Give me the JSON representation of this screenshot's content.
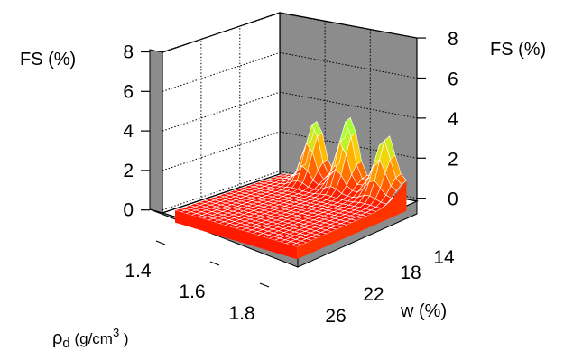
{
  "chart_data": {
    "type": "surface3d",
    "title": "",
    "zlabel_left": "FS (%)",
    "zlabel_right": "FS (%)",
    "xlabel_main": "ρ",
    "xlabel_sub": "d",
    "xlabel_unit": " (g/cm",
    "xlabel_sup": "3",
    "xlabel_close": " )",
    "ylabel": "w (%)",
    "z_ticks": [
      "0",
      "2",
      "4",
      "6",
      "8"
    ],
    "x_ticks": [
      "1.4",
      "1.6",
      "1.8"
    ],
    "y_ticks": [
      "14",
      "18",
      "22",
      "26"
    ],
    "xlim": [
      1.3,
      1.9
    ],
    "ylim": [
      12,
      28
    ],
    "zlim": [
      -1,
      8
    ],
    "grid": true,
    "colormap": [
      "#ff0000",
      "#ff6a00",
      "#ffcc00",
      "#aaff33"
    ],
    "surface_profile": {
      "description_of_peaks_along_w_at_low_density": [
        {
          "w": 14,
          "fs": 2.6
        },
        {
          "w": 18,
          "fs": 3.0
        },
        {
          "w": 22,
          "fs": 3.3
        },
        {
          "w": 26,
          "fs": 2.7
        }
      ],
      "base_fs": 0
    }
  }
}
